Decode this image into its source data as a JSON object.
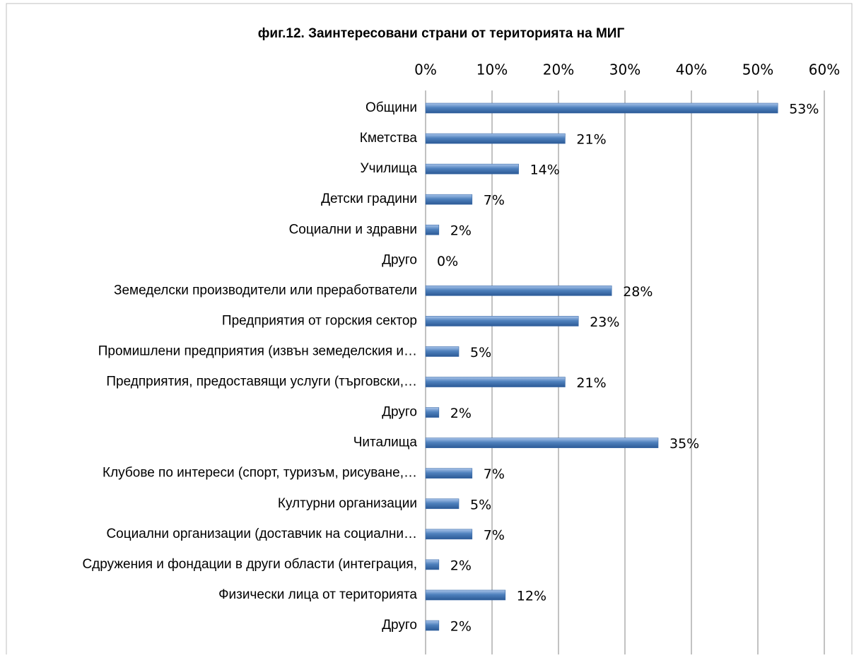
{
  "chart_data": {
    "type": "bar",
    "orientation": "horizontal",
    "title": "фиг.12. Заинтересовани страни от територията на МИГ",
    "categories": [
      "Общини",
      "Кметства",
      "Училища",
      "Детски градини",
      "Социални и здравни",
      "Друго",
      "Земеделски производители или преработватели",
      "Предприятия от горския сектор",
      "Промишлени предприятия (извън земеделския и…",
      "Предприятия, предоставящи услуги (търговски,…",
      "Друго",
      "Читалища",
      "Клубове по интереси (спорт, туризъм, рисуване,…",
      "Културни организации",
      "Социални организации (доставчик на социални…",
      "Сдружения и фондации в други области (интеграция,",
      "Физически лица от територията",
      "Друго"
    ],
    "values": [
      53,
      21,
      14,
      7,
      2,
      0,
      28,
      23,
      5,
      21,
      2,
      35,
      7,
      5,
      7,
      2,
      12,
      2
    ],
    "value_labels": [
      "53%",
      "21%",
      "14%",
      "7%",
      "2%",
      "0%",
      "28%",
      "23%",
      "5%",
      "21%",
      "2%",
      "35%",
      "7%",
      "5%",
      "7%",
      "2%",
      "12%",
      "2%"
    ],
    "color": "#4f81bd",
    "xlim": [
      0,
      60
    ],
    "xticks": [
      {
        "value": 0,
        "label": "0%"
      },
      {
        "value": 10,
        "label": "10%"
      },
      {
        "value": 20,
        "label": "20%"
      },
      {
        "value": 30,
        "label": "30%"
      },
      {
        "value": 40,
        "label": "40%"
      },
      {
        "value": 50,
        "label": "50%"
      },
      {
        "value": 60,
        "label": "60%"
      }
    ],
    "grid": true
  }
}
